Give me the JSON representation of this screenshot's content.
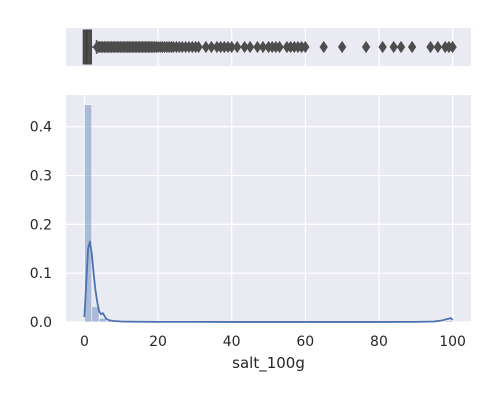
{
  "chart_data": [
    {
      "type": "box",
      "orientation": "horizontal",
      "variable": "salt_100g",
      "xlim": [
        -5,
        105
      ],
      "grid": true,
      "background": "#eaeaf2",
      "box": {
        "min": 0,
        "q1": 0.08,
        "median": 0.6,
        "q3": 1.5,
        "whisker_high": 3.3
      },
      "box_color": "#4d4d4d",
      "outlier_marker": "diamond",
      "outliers": [
        3.4,
        3.8,
        4.2,
        4.6,
        5.0,
        5.4,
        5.8,
        6.2,
        6.6,
        7.0,
        7.4,
        7.8,
        8.2,
        8.6,
        9.0,
        9.4,
        9.8,
        10.2,
        10.6,
        11.0,
        11.4,
        11.8,
        12.2,
        12.6,
        13.0,
        13.4,
        13.8,
        14.2,
        14.6,
        15.0,
        15.4,
        15.8,
        16.2,
        16.6,
        17.0,
        17.4,
        17.8,
        18.2,
        18.6,
        19.0,
        19.5,
        20.0,
        20.6,
        21.2,
        21.8,
        22.4,
        23.0,
        23.6,
        24.2,
        25.0,
        25.8,
        26.6,
        27.5,
        28.4,
        29.3,
        30.2,
        31.0,
        33.0,
        34.5,
        36.0,
        37.0,
        38.0,
        39.0,
        40.0,
        41.5,
        43.5,
        45.0,
        47.0,
        48.5,
        50.0,
        51.0,
        52.0,
        53.0,
        55.0,
        56.0,
        57.0,
        58.0,
        59.0,
        60.0,
        65.0,
        70.0,
        76.5,
        81.0,
        84.0,
        86.0,
        89.0,
        94.0,
        96.0,
        98.0,
        99.0,
        100.0
      ]
    },
    {
      "type": "histogram",
      "xlabel": "salt_100g",
      "xlim": [
        -5,
        105
      ],
      "ylim": [
        0,
        0.465
      ],
      "grid": true,
      "background": "#eaeaf2",
      "xticks": [
        0,
        20,
        40,
        60,
        80,
        100
      ],
      "yticks": [
        0.0,
        0.1,
        0.2,
        0.3,
        0.4
      ],
      "ytick_labels": [
        "0.0",
        "0.1",
        "0.2",
        "0.3",
        "0.4"
      ],
      "bar_color": "#4c72b0",
      "bar_opacity": 0.4,
      "bins": [
        {
          "x0": 0,
          "x1": 2,
          "density": 0.445
        },
        {
          "x0": 2,
          "x1": 4,
          "density": 0.032
        },
        {
          "x0": 4,
          "x1": 6,
          "density": 0.008
        },
        {
          "x0": 6,
          "x1": 8,
          "density": 0.003
        },
        {
          "x0": 8,
          "x1": 10,
          "density": 0.001
        },
        {
          "x0": 98,
          "x1": 100,
          "density": 0.003
        }
      ],
      "kde": {
        "color": "#4c72b0",
        "x": [
          0,
          0.5,
          1,
          1.5,
          2,
          2.5,
          3,
          3.5,
          4,
          4.5,
          5,
          5.5,
          6,
          7,
          8,
          10,
          12,
          15,
          20,
          30,
          40,
          60,
          80,
          90,
          95,
          97,
          98.5,
          99.5,
          100
        ],
        "y": [
          0.01,
          0.08,
          0.15,
          0.165,
          0.14,
          0.1,
          0.065,
          0.04,
          0.022,
          0.016,
          0.018,
          0.012,
          0.006,
          0.003,
          0.002,
          0.001,
          0.0008,
          0.0005,
          0.0003,
          0.0002,
          0.0001,
          0.0001,
          0.0001,
          0.0003,
          0.001,
          0.003,
          0.006,
          0.008,
          0.004
        ]
      }
    }
  ]
}
